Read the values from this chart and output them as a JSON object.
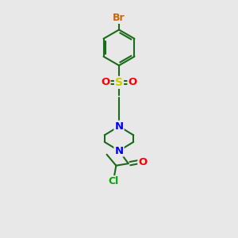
{
  "bg_color": "#e8e8e8",
  "atom_colors": {
    "Br": "#cc6600",
    "N": "#0000ff",
    "O": "#ff0000",
    "S": "#cccc00",
    "Cl": "#00aa00",
    "C": "#1a6b1a"
  },
  "bond_color": "#1a6b1a",
  "lw": 1.5,
  "fontsize": 9.5
}
